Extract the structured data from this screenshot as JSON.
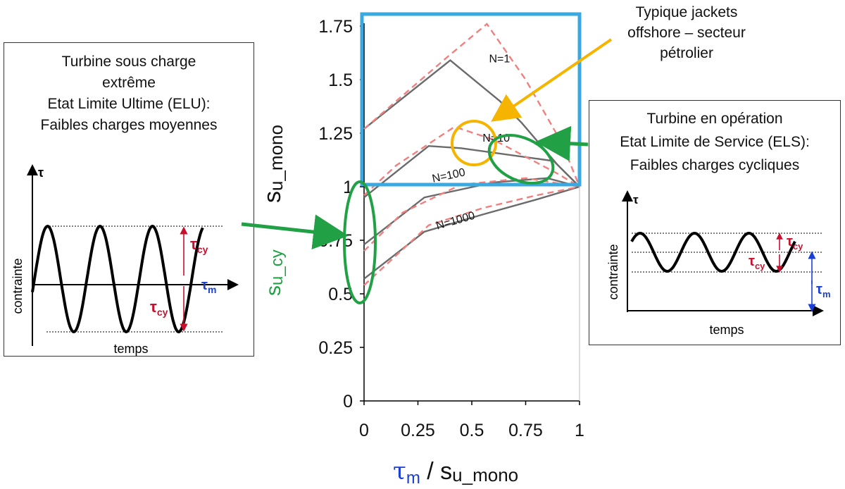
{
  "left_panel": {
    "title_lines": [
      "Turbine sous charge",
      "extrême",
      "Etat Limite Ultime (ELU):",
      "Faibles charges moyennes"
    ],
    "y_axis_symbol": "τ",
    "y_label": "contrainte",
    "x_label": "temps",
    "tau_cy_label": "τ",
    "tau_cy_sub": "cy",
    "tau_m_label": "τ",
    "tau_m_sub": "m"
  },
  "right_panel": {
    "title_lines": [
      "Turbine en opération",
      "Etat Limite de Service (ELS):",
      "Faibles charges cycliques"
    ],
    "y_axis_symbol": "τ",
    "y_label": "contrainte",
    "x_label": "temps",
    "tau_cy_label": "τ",
    "tau_cy_sub": "cy",
    "tau_m_label": "τ",
    "tau_m_sub": "m"
  },
  "annotation_top": {
    "lines": [
      "Typique jackets",
      "offshore – secteur",
      "pétrolier"
    ]
  },
  "colors": {
    "highlight_box": "#3aa9e0",
    "solid_curve": "#6b6b6b",
    "dashed_curve": "#f08080",
    "green": "#21a046",
    "orange": "#f5b400",
    "red_label": "#c8102e",
    "blue_label": "#1a3fd6"
  },
  "chart_data": {
    "type": "line",
    "xlabel_parts": [
      "τ",
      "m",
      " / s",
      "u_mono"
    ],
    "ylabel_parts": [
      "s",
      "u_mono"
    ],
    "ylabel2_parts": [
      "s",
      "u_cy"
    ],
    "xlim": [
      0,
      1
    ],
    "ylim": [
      0,
      1.75
    ],
    "xticks": [
      "0",
      "0.25",
      "0.5",
      "0.75",
      "1"
    ],
    "yticks": [
      "0",
      "0.25",
      "0.5",
      "0.75",
      "1",
      "1.25",
      "1.5",
      "1.75"
    ],
    "series": [
      {
        "name": "N=1",
        "style": "solid",
        "x": [
          0,
          0.4,
          0.63,
          0.73,
          0.9,
          1
        ],
        "y": [
          1.27,
          1.59,
          1.4,
          1.3,
          1.1,
          1.0
        ]
      },
      {
        "name": "N=1",
        "style": "dashed",
        "x": [
          0,
          0.38,
          0.57,
          0.75,
          0.92,
          1
        ],
        "y": [
          1.27,
          1.6,
          1.76,
          1.5,
          1.2,
          1.0
        ]
      },
      {
        "name": "N=10",
        "style": "solid",
        "x": [
          0,
          0.3,
          0.45,
          0.88,
          1
        ],
        "y": [
          0.95,
          1.19,
          1.18,
          1.12,
          1.0
        ]
      },
      {
        "name": "N=10",
        "style": "dashed",
        "x": [
          0,
          0.15,
          0.42,
          0.6,
          0.9,
          1
        ],
        "y": [
          0.96,
          1.1,
          1.28,
          1.22,
          1.06,
          1.0
        ]
      },
      {
        "name": "N=100",
        "style": "solid",
        "x": [
          0,
          0.28,
          0.6,
          0.85,
          1
        ],
        "y": [
          0.73,
          0.95,
          1.02,
          1.04,
          1.0
        ]
      },
      {
        "name": "N=100",
        "style": "dashed",
        "x": [
          0,
          0.18,
          0.45,
          0.75,
          1
        ],
        "y": [
          0.7,
          0.88,
          1.01,
          1.04,
          1.0
        ]
      },
      {
        "name": "N=1000",
        "style": "solid",
        "x": [
          0,
          0.28,
          0.55,
          0.8,
          1
        ],
        "y": [
          0.57,
          0.79,
          0.87,
          0.94,
          1.0
        ]
      },
      {
        "name": "N=1000",
        "style": "dashed",
        "x": [
          0,
          0.15,
          0.3,
          0.55,
          0.8,
          1
        ],
        "y": [
          0.54,
          0.68,
          0.82,
          0.9,
          0.96,
          1.0
        ]
      }
    ],
    "curve_labels": [
      {
        "text": "N=1",
        "x": 0.58,
        "y": 1.58,
        "angle": 0
      },
      {
        "text": "N=10",
        "x": 0.55,
        "y": 1.21,
        "angle": 0
      },
      {
        "text": "N=100",
        "x": 0.32,
        "y": 1.02,
        "angle": -12
      },
      {
        "text": "N=1000",
        "x": 0.34,
        "y": 0.8,
        "angle": -16
      }
    ]
  }
}
